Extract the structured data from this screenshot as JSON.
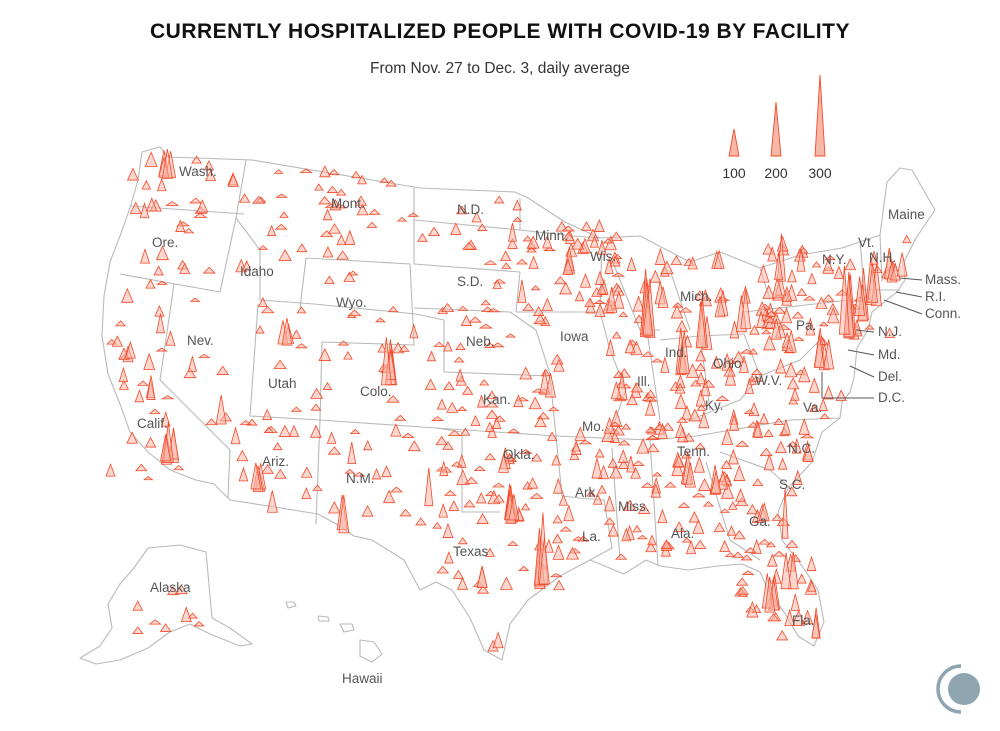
{
  "title": "CURRENTLY HOSPITALIZED PEOPLE WITH COVID-19 BY FACILITY",
  "subtitle": "From Nov. 27 to Dec. 3, daily average",
  "colors": {
    "spike_fill": "#f7b7a7",
    "spike_stroke": "#f24a2a",
    "border": "#b9b9b9",
    "label": "#555555",
    "logo": "#8fa6b2"
  },
  "legend": {
    "items": [
      {
        "value": 100,
        "label": "100"
      },
      {
        "value": 200,
        "label": "200"
      },
      {
        "value": 300,
        "label": "300"
      }
    ]
  },
  "state_labels": [
    "Wash.",
    "Ore.",
    "Idaho",
    "Mont.",
    "N.D.",
    "Minn.",
    "Wis.",
    "Maine",
    "Vt.",
    "N.H.",
    "N.Y.",
    "Mass.",
    "R.I.",
    "Conn.",
    "N.J.",
    "Md.",
    "Del.",
    "D.C.",
    "Pa.",
    "Mich.",
    "S.D.",
    "Wyo.",
    "Neb.",
    "Iowa",
    "Nev.",
    "Utah",
    "Colo.",
    "Kan.",
    "Ill.",
    "Ind.",
    "Ohio",
    "W.V.",
    "Va.",
    "Ky.",
    "Mo.",
    "Calif.",
    "Ariz.",
    "N.M.",
    "Okla.",
    "Tenn.",
    "N.C.",
    "S.C.",
    "Ark.",
    "Miss.",
    "Ala.",
    "Ga.",
    "La.",
    "Texas",
    "Fla.",
    "Alaska",
    "Hawaii"
  ],
  "logo": "circle-logo-icon"
}
